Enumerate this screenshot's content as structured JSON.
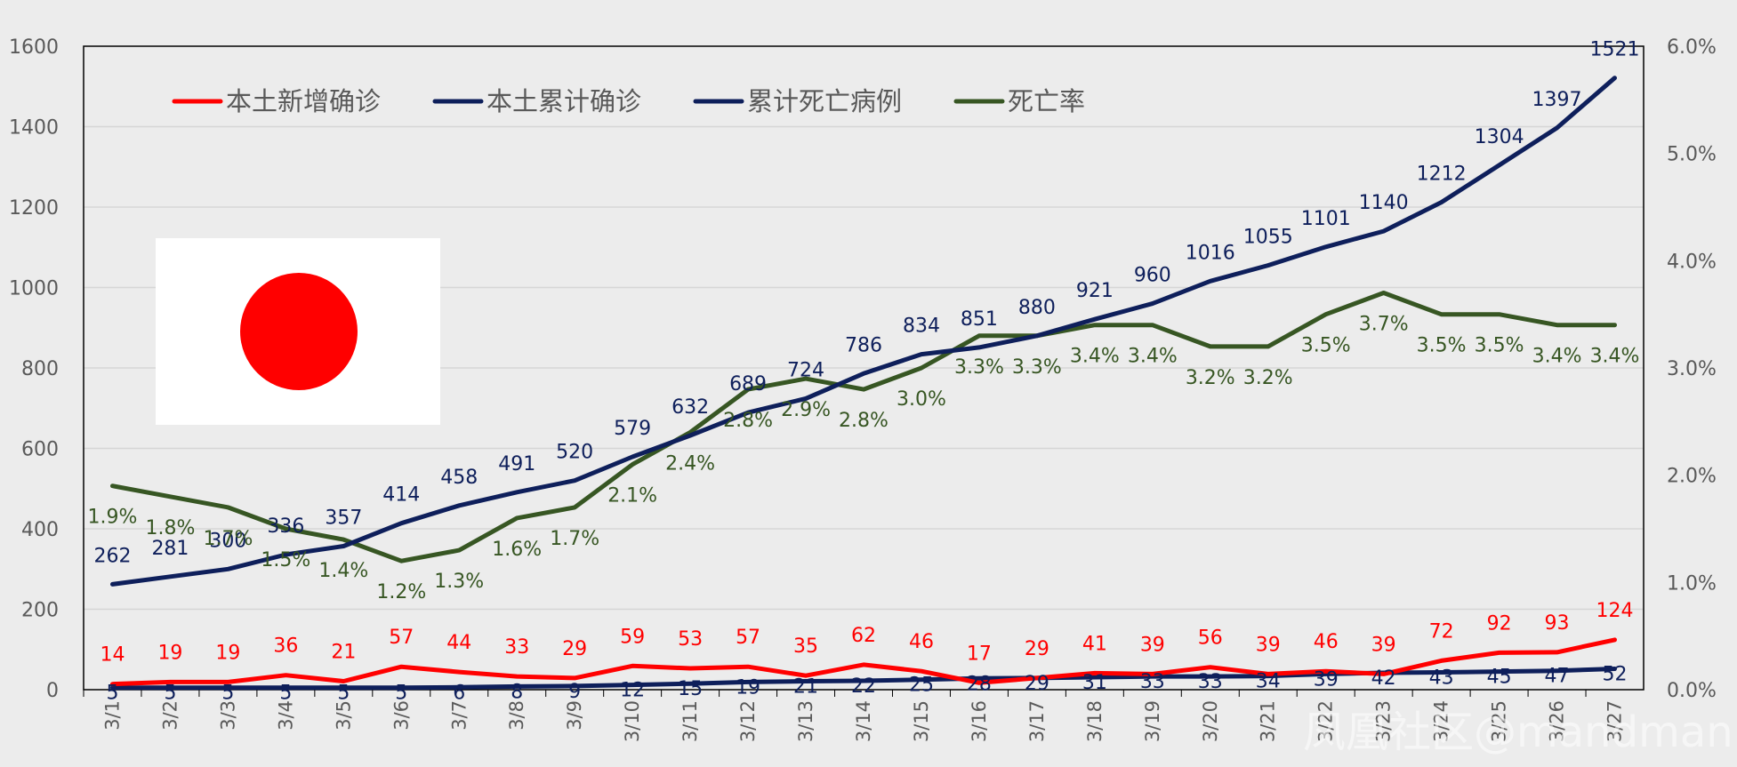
{
  "chart_data": {
    "type": "line",
    "title": "",
    "categories": [
      "3/1",
      "3/2",
      "3/3",
      "3/4",
      "3/5",
      "3/6",
      "3/7",
      "3/8",
      "3/9",
      "3/10",
      "3/11",
      "3/12",
      "3/13",
      "3/14",
      "3/15",
      "3/16",
      "3/17",
      "3/18",
      "3/19",
      "3/20",
      "3/21",
      "3/22",
      "3/23",
      "3/24",
      "3/25",
      "3/26",
      "3/27"
    ],
    "ylim": [
      0,
      1600
    ],
    "yticks": [
      0,
      200,
      400,
      600,
      800,
      1000,
      1200,
      1400,
      1600
    ],
    "y2lim": [
      0,
      0.06
    ],
    "y2ticks": [
      "0.0%",
      "1.0%",
      "2.0%",
      "3.0%",
      "4.0%",
      "5.0%",
      "6.0%"
    ],
    "series": [
      {
        "name": "本土新增确诊",
        "axis": "left",
        "color": "#ff0000",
        "values": [
          14,
          19,
          19,
          36,
          21,
          57,
          44,
          33,
          29,
          59,
          53,
          57,
          35,
          62,
          46,
          17,
          29,
          41,
          39,
          56,
          39,
          46,
          39,
          72,
          92,
          93,
          124
        ]
      },
      {
        "name": "本土累计确诊",
        "axis": "left",
        "color": "#0e1f5b",
        "values": [
          262,
          281,
          300,
          336,
          357,
          414,
          458,
          491,
          520,
          579,
          632,
          689,
          724,
          786,
          834,
          851,
          880,
          921,
          960,
          1016,
          1055,
          1101,
          1140,
          1212,
          1304,
          1397,
          1521
        ]
      },
      {
        "name": "累计死亡病例",
        "axis": "left",
        "color": "#0e1f5b",
        "values": [
          5,
          5,
          5,
          5,
          5,
          5,
          6,
          8,
          9,
          12,
          15,
          19,
          21,
          22,
          25,
          28,
          29,
          31,
          33,
          33,
          34,
          39,
          42,
          43,
          45,
          47,
          52
        ]
      },
      {
        "name": "死亡率",
        "axis": "right",
        "color": "#375623",
        "values": [
          1.9,
          1.8,
          1.7,
          1.5,
          1.4,
          1.2,
          1.3,
          1.6,
          1.7,
          2.1,
          2.4,
          2.8,
          2.9,
          2.8,
          3.0,
          3.3,
          3.3,
          3.4,
          3.4,
          3.2,
          3.2,
          3.5,
          3.7,
          3.5,
          3.5,
          3.4,
          3.4
        ],
        "labels": [
          "1.9%",
          "1.8%",
          "1.7%",
          "1.5%",
          "1.4%",
          "1.2%",
          "1.3%",
          "1.6%",
          "1.7%",
          "2.1%",
          "2.4%",
          "2.8%",
          "2.9%",
          "2.8%",
          "3.0%",
          "3.3%",
          "3.3%",
          "3.4%",
          "3.4%",
          "3.2%",
          "3.2%",
          "3.5%",
          "3.7%",
          "3.5%",
          "3.5%",
          "3.4%",
          "3.4%"
        ]
      }
    ],
    "legend_position": "top-left",
    "grid": true
  },
  "flag": {
    "background": "#ffffff",
    "disc": "#ff0000"
  },
  "watermark": "凤凰社区@mandman"
}
